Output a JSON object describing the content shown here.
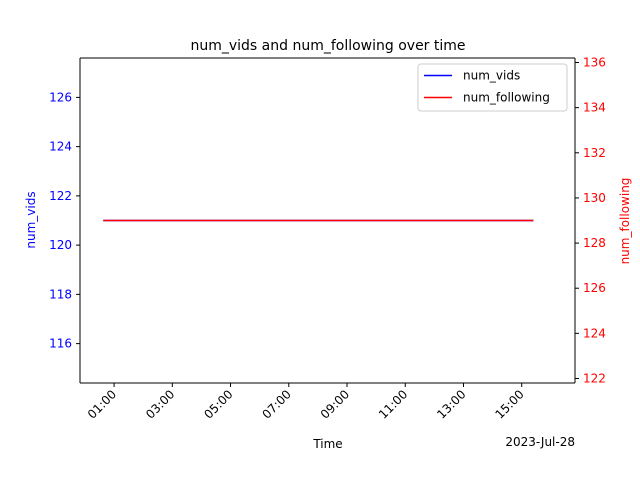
{
  "chart_data": {
    "type": "line",
    "title": "num_vids and num_following over time",
    "xlabel": "Time",
    "x_date_label": "2023-Jul-28",
    "x_ticks": [
      "01:00",
      "03:00",
      "05:00",
      "07:00",
      "09:00",
      "11:00",
      "13:00",
      "15:00"
    ],
    "x_tick_hours": [
      1,
      3,
      5,
      7,
      9,
      11,
      13,
      15
    ],
    "xlim_hours": [
      -0.17,
      16.83
    ],
    "left_axis": {
      "label": "num_vids",
      "color": "#0000ff",
      "ticks": [
        116,
        118,
        120,
        122,
        124,
        126
      ],
      "ylim": [
        114.4,
        127.6
      ]
    },
    "right_axis": {
      "label": "num_following",
      "color": "#ff0000",
      "ticks": [
        122,
        124,
        126,
        128,
        130,
        132,
        134,
        136
      ],
      "ylim": [
        121.8,
        136.2
      ]
    },
    "series": [
      {
        "name": "num_vids",
        "color": "#0000ff",
        "axis": "left",
        "x_hours": [
          0.63,
          15.4
        ],
        "values": [
          121,
          121
        ]
      },
      {
        "name": "num_following",
        "color": "#ff0000",
        "axis": "right",
        "x_hours": [
          0.63,
          15.4
        ],
        "values": [
          129,
          129
        ]
      }
    ],
    "legend_position": "top-right",
    "grid": false
  }
}
